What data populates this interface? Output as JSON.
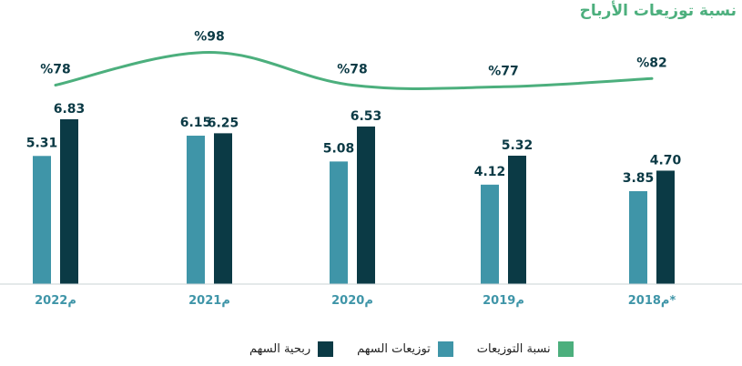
{
  "chart_data": {
    "type": "bar",
    "title": "نسبة توزيعات الأرباح",
    "categories": [
      "2022م",
      "2021م",
      "2020م",
      "2019م",
      "2018م*"
    ],
    "series": [
      {
        "name": "توزيعات السهم",
        "kind": "bar",
        "color": "#3f95a8",
        "values": [
          5.31,
          6.15,
          5.08,
          4.12,
          3.85
        ],
        "labels": [
          "5.31",
          "6.15",
          "5.08",
          "4.12",
          "3.85"
        ]
      },
      {
        "name": "ربحية السهم",
        "kind": "bar",
        "color": "#0b3a45",
        "values": [
          6.83,
          6.25,
          6.53,
          5.32,
          4.7
        ],
        "labels": [
          "6.83",
          "6.25",
          "6.53",
          "5.32",
          "4.70"
        ]
      },
      {
        "name": "نسبة التوزيعات",
        "kind": "line",
        "color": "#4caf7d",
        "values": [
          78,
          98,
          78,
          77,
          82
        ],
        "labels": [
          "%78",
          "%98",
          "%78",
          "%77",
          "%82"
        ]
      }
    ],
    "bar_ylim": [
      0,
      10
    ],
    "legend_placement": "bottom",
    "grid": false
  }
}
